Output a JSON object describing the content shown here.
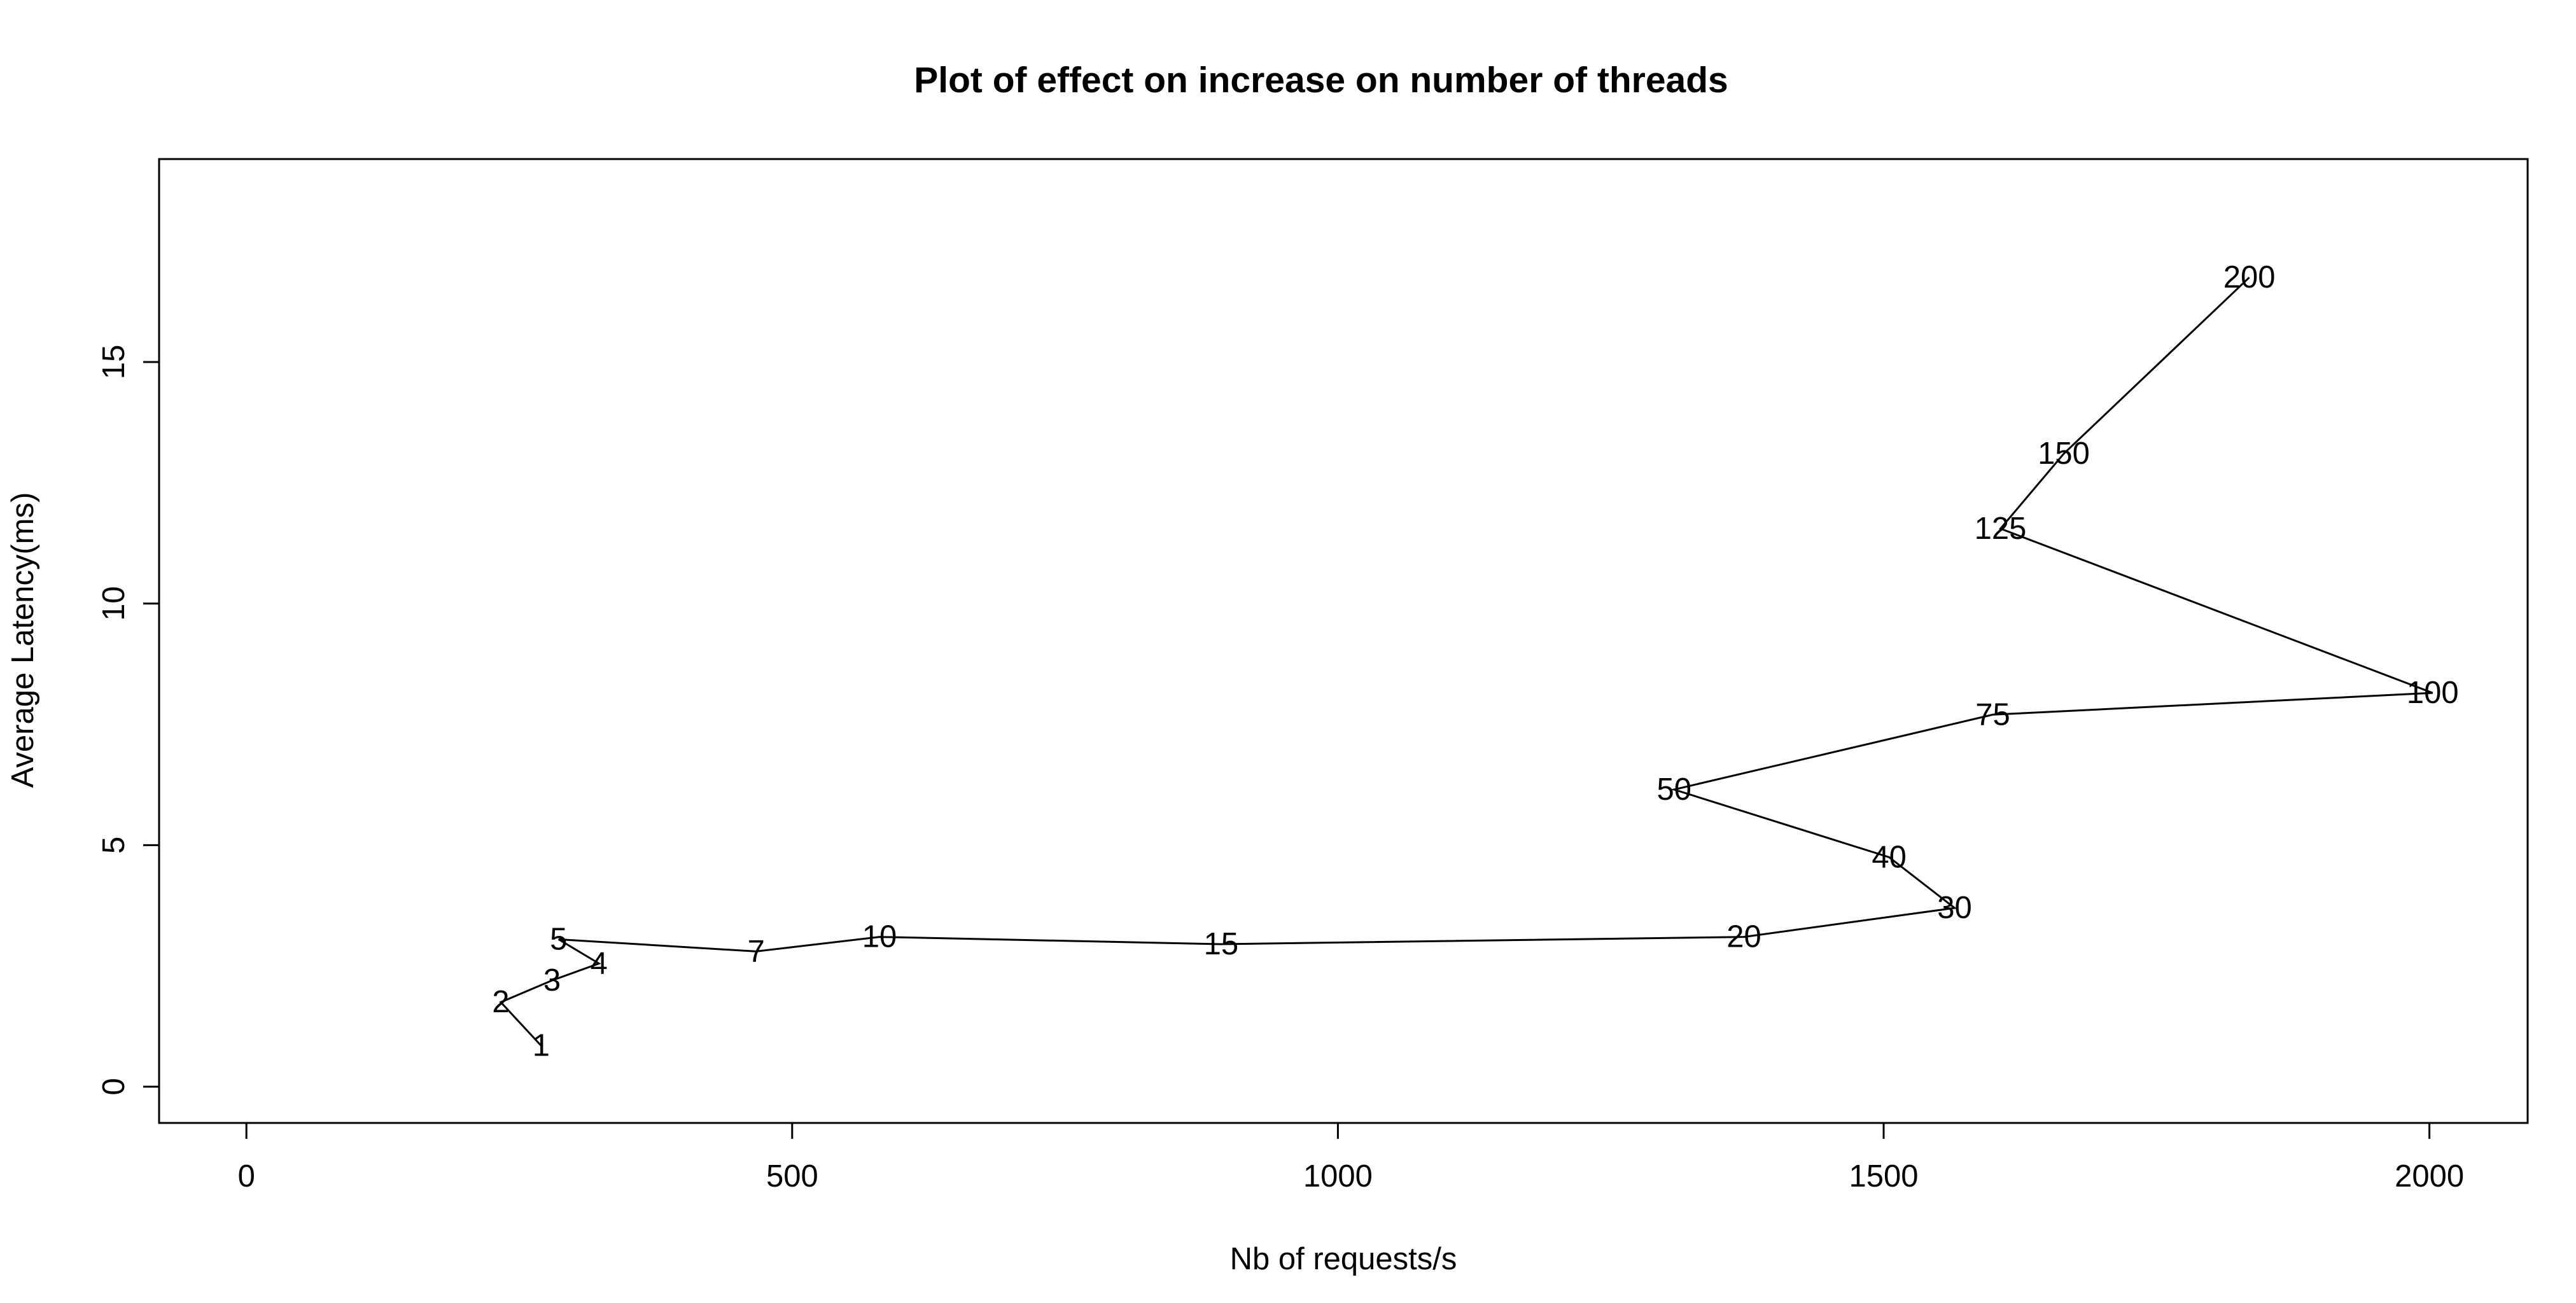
{
  "chart_data": {
    "type": "line",
    "title": "Plot of effect on increase on number of threads",
    "xlabel": "Nb of requests/s",
    "ylabel": "Average Latency(ms)",
    "xlim": [
      -80,
      2090
    ],
    "ylim": [
      -0.75,
      19.2
    ],
    "x_ticks": [
      0,
      500,
      1000,
      1500,
      2000
    ],
    "y_ticks": [
      0,
      5,
      10,
      15
    ],
    "grid": false,
    "legend": "none",
    "series": [
      {
        "point_labels": [
          "1",
          "2",
          "3",
          "4",
          "5",
          "7",
          "10",
          "15",
          "20",
          "30",
          "40",
          "50",
          "75",
          "100",
          "125",
          "150",
          "200"
        ],
        "x": [
          270,
          233,
          280,
          323,
          286,
          467,
          580,
          893,
          1372,
          1565,
          1505,
          1308,
          1600,
          2003,
          1607,
          1665,
          1835
        ],
        "y": [
          0.85,
          1.75,
          2.2,
          2.55,
          3.05,
          2.8,
          3.1,
          2.95,
          3.1,
          3.7,
          4.75,
          6.15,
          7.7,
          8.15,
          11.55,
          13.1,
          16.75
        ]
      }
    ],
    "color": "#000000"
  }
}
